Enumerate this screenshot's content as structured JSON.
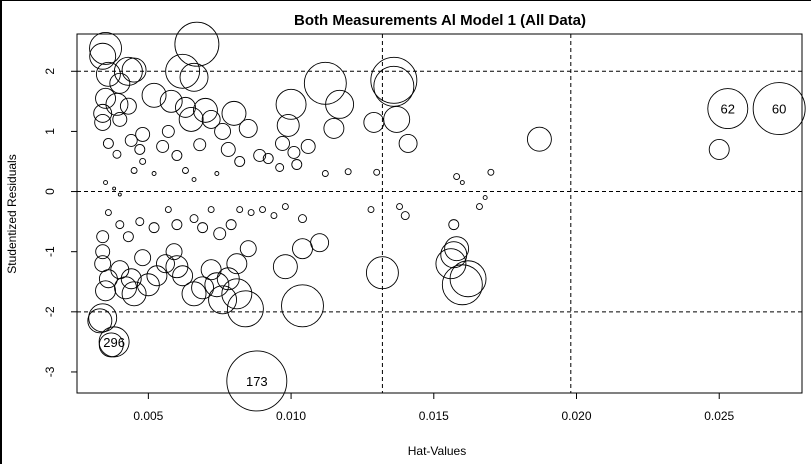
{
  "chart_data": {
    "type": "scatter",
    "title": "Both Measurements Al Model 1 (All Data)",
    "xlabel": "Hat-Values",
    "ylabel": "Studentized Residuals",
    "xlim": [
      0.0025,
      0.0279
    ],
    "ylim": [
      -3.35,
      2.62
    ],
    "x_ticks": [
      0.005,
      0.01,
      0.015,
      0.02,
      0.025
    ],
    "x_tick_labels": [
      "0.005",
      "0.010",
      "0.015",
      "0.020",
      "0.025"
    ],
    "y_ticks": [
      -3,
      -2,
      -1,
      0,
      1,
      2
    ],
    "y_tick_labels": [
      "-3",
      "-2",
      "-1",
      "0",
      "1",
      "2"
    ],
    "grid": false,
    "reference_lines": {
      "h": [
        -2,
        0,
        2
      ],
      "v": [
        0.0132,
        0.0198
      ]
    },
    "point_style": "open circles, area proportional to Cook's distance",
    "points": [
      {
        "x": 0.0035,
        "y": 2.38,
        "size": 16
      },
      {
        "x": 0.0034,
        "y": 2.25,
        "size": 13
      },
      {
        "x": 0.0036,
        "y": 1.95,
        "size": 12
      },
      {
        "x": 0.0035,
        "y": 1.55,
        "size": 10
      },
      {
        "x": 0.0034,
        "y": 1.3,
        "size": 9
      },
      {
        "x": 0.0034,
        "y": 1.15,
        "size": 8
      },
      {
        "x": 0.0039,
        "y": 1.45,
        "size": 11
      },
      {
        "x": 0.0043,
        "y": 2.0,
        "size": 14
      },
      {
        "x": 0.0045,
        "y": 2.02,
        "size": 12
      },
      {
        "x": 0.004,
        "y": 1.8,
        "size": 10
      },
      {
        "x": 0.004,
        "y": 1.2,
        "size": 7
      },
      {
        "x": 0.0043,
        "y": 1.42,
        "size": 8
      },
      {
        "x": 0.0052,
        "y": 1.6,
        "size": 12
      },
      {
        "x": 0.0058,
        "y": 1.5,
        "size": 11
      },
      {
        "x": 0.0062,
        "y": 2.0,
        "size": 17
      },
      {
        "x": 0.0066,
        "y": 1.9,
        "size": 14
      },
      {
        "x": 0.0067,
        "y": 2.45,
        "size": 22
      },
      {
        "x": 0.0065,
        "y": 1.2,
        "size": 12
      },
      {
        "x": 0.0063,
        "y": 1.4,
        "size": 10
      },
      {
        "x": 0.007,
        "y": 1.35,
        "size": 12
      },
      {
        "x": 0.0072,
        "y": 1.2,
        "size": 9
      },
      {
        "x": 0.008,
        "y": 1.3,
        "size": 12
      },
      {
        "x": 0.0076,
        "y": 1.0,
        "size": 8
      },
      {
        "x": 0.0085,
        "y": 1.05,
        "size": 9
      },
      {
        "x": 0.01,
        "y": 1.45,
        "size": 15
      },
      {
        "x": 0.0099,
        "y": 1.1,
        "size": 11
      },
      {
        "x": 0.0112,
        "y": 1.8,
        "size": 21
      },
      {
        "x": 0.0117,
        "y": 1.45,
        "size": 14
      },
      {
        "x": 0.0115,
        "y": 1.05,
        "size": 10
      },
      {
        "x": 0.0129,
        "y": 1.15,
        "size": 10
      },
      {
        "x": 0.0136,
        "y": 1.85,
        "size": 23
      },
      {
        "x": 0.0136,
        "y": 1.75,
        "size": 20
      },
      {
        "x": 0.0137,
        "y": 1.2,
        "size": 13
      },
      {
        "x": 0.0141,
        "y": 0.8,
        "size": 9
      },
      {
        "x": 0.0187,
        "y": 0.87,
        "size": 12
      },
      {
        "x": 0.025,
        "y": 0.7,
        "size": 10
      },
      {
        "x": 0.0253,
        "y": 1.38,
        "size": 20,
        "label": "62"
      },
      {
        "x": 0.0271,
        "y": 1.38,
        "size": 26,
        "label": "60"
      },
      {
        "x": 0.0036,
        "y": 0.8,
        "size": 5
      },
      {
        "x": 0.0039,
        "y": 0.62,
        "size": 4
      },
      {
        "x": 0.0044,
        "y": 0.85,
        "size": 6
      },
      {
        "x": 0.0048,
        "y": 0.95,
        "size": 7
      },
      {
        "x": 0.0047,
        "y": 0.7,
        "size": 5
      },
      {
        "x": 0.0055,
        "y": 0.75,
        "size": 6
      },
      {
        "x": 0.0057,
        "y": 1.0,
        "size": 6
      },
      {
        "x": 0.006,
        "y": 0.6,
        "size": 5
      },
      {
        "x": 0.0068,
        "y": 0.78,
        "size": 6
      },
      {
        "x": 0.0078,
        "y": 0.7,
        "size": 7
      },
      {
        "x": 0.0082,
        "y": 0.5,
        "size": 5
      },
      {
        "x": 0.0089,
        "y": 0.6,
        "size": 6
      },
      {
        "x": 0.0092,
        "y": 0.55,
        "size": 5
      },
      {
        "x": 0.0097,
        "y": 0.8,
        "size": 7
      },
      {
        "x": 0.0101,
        "y": 0.65,
        "size": 6
      },
      {
        "x": 0.0102,
        "y": 0.45,
        "size": 5
      },
      {
        "x": 0.0106,
        "y": 0.75,
        "size": 7
      },
      {
        "x": 0.0096,
        "y": 0.4,
        "size": 4
      },
      {
        "x": 0.0112,
        "y": 0.3,
        "size": 3
      },
      {
        "x": 0.012,
        "y": 0.33,
        "size": 3
      },
      {
        "x": 0.013,
        "y": 0.32,
        "size": 3
      },
      {
        "x": 0.0158,
        "y": 0.25,
        "size": 3
      },
      {
        "x": 0.017,
        "y": 0.32,
        "size": 3
      },
      {
        "x": 0.016,
        "y": 0.15,
        "size": 2
      },
      {
        "x": 0.0035,
        "y": 0.15,
        "size": 2
      },
      {
        "x": 0.0038,
        "y": 0.05,
        "size": 1.5
      },
      {
        "x": 0.004,
        "y": -0.05,
        "size": 1.5
      },
      {
        "x": 0.0045,
        "y": 0.35,
        "size": 3
      },
      {
        "x": 0.0048,
        "y": 0.5,
        "size": 3
      },
      {
        "x": 0.0052,
        "y": 0.3,
        "size": 2
      },
      {
        "x": 0.0063,
        "y": 0.35,
        "size": 3
      },
      {
        "x": 0.0066,
        "y": 0.2,
        "size": 2
      },
      {
        "x": 0.0074,
        "y": 0.3,
        "size": 2
      },
      {
        "x": 0.0036,
        "y": -0.35,
        "size": 3
      },
      {
        "x": 0.004,
        "y": -0.55,
        "size": 4
      },
      {
        "x": 0.0043,
        "y": -0.75,
        "size": 5
      },
      {
        "x": 0.0047,
        "y": -0.5,
        "size": 4
      },
      {
        "x": 0.0052,
        "y": -0.6,
        "size": 5
      },
      {
        "x": 0.0057,
        "y": -0.3,
        "size": 3
      },
      {
        "x": 0.006,
        "y": -0.55,
        "size": 5
      },
      {
        "x": 0.0066,
        "y": -0.45,
        "size": 4
      },
      {
        "x": 0.0069,
        "y": -0.6,
        "size": 5
      },
      {
        "x": 0.0072,
        "y": -0.3,
        "size": 3
      },
      {
        "x": 0.0075,
        "y": -0.7,
        "size": 6
      },
      {
        "x": 0.0079,
        "y": -0.55,
        "size": 5
      },
      {
        "x": 0.0082,
        "y": -0.3,
        "size": 3
      },
      {
        "x": 0.0086,
        "y": -0.35,
        "size": 3
      },
      {
        "x": 0.009,
        "y": -0.3,
        "size": 3
      },
      {
        "x": 0.0094,
        "y": -0.4,
        "size": 3
      },
      {
        "x": 0.0098,
        "y": -0.25,
        "size": 3
      },
      {
        "x": 0.0104,
        "y": -0.45,
        "size": 4
      },
      {
        "x": 0.0128,
        "y": -0.3,
        "size": 3
      },
      {
        "x": 0.0138,
        "y": -0.25,
        "size": 3
      },
      {
        "x": 0.014,
        "y": -0.4,
        "size": 4
      },
      {
        "x": 0.0157,
        "y": -0.55,
        "size": 5
      },
      {
        "x": 0.0166,
        "y": -0.25,
        "size": 3
      },
      {
        "x": 0.0168,
        "y": -0.1,
        "size": 2
      },
      {
        "x": 0.0034,
        "y": -0.75,
        "size": 6
      },
      {
        "x": 0.0034,
        "y": -1.0,
        "size": 7
      },
      {
        "x": 0.0034,
        "y": -1.2,
        "size": 8
      },
      {
        "x": 0.0036,
        "y": -1.45,
        "size": 9
      },
      {
        "x": 0.0035,
        "y": -1.65,
        "size": 10
      },
      {
        "x": 0.0034,
        "y": -2.1,
        "size": 14
      },
      {
        "x": 0.0033,
        "y": -2.15,
        "size": 12
      },
      {
        "x": 0.0038,
        "y": -2.5,
        "size": 15,
        "label": "296"
      },
      {
        "x": 0.0037,
        "y": -2.55,
        "size": 12
      },
      {
        "x": 0.004,
        "y": -1.3,
        "size": 9
      },
      {
        "x": 0.0042,
        "y": -1.6,
        "size": 11
      },
      {
        "x": 0.0044,
        "y": -1.45,
        "size": 10
      },
      {
        "x": 0.0045,
        "y": -1.7,
        "size": 12
      },
      {
        "x": 0.0048,
        "y": -1.1,
        "size": 8
      },
      {
        "x": 0.005,
        "y": -1.55,
        "size": 11
      },
      {
        "x": 0.0053,
        "y": -1.4,
        "size": 10
      },
      {
        "x": 0.0056,
        "y": -1.2,
        "size": 9
      },
      {
        "x": 0.006,
        "y": -1.25,
        "size": 11
      },
      {
        "x": 0.0059,
        "y": -1.0,
        "size": 8
      },
      {
        "x": 0.0062,
        "y": -1.4,
        "size": 10
      },
      {
        "x": 0.0066,
        "y": -1.7,
        "size": 12
      },
      {
        "x": 0.0069,
        "y": -1.6,
        "size": 11
      },
      {
        "x": 0.0072,
        "y": -1.3,
        "size": 10
      },
      {
        "x": 0.0074,
        "y": -1.55,
        "size": 12
      },
      {
        "x": 0.0076,
        "y": -1.8,
        "size": 14
      },
      {
        "x": 0.0078,
        "y": -1.45,
        "size": 11
      },
      {
        "x": 0.0081,
        "y": -1.7,
        "size": 15
      },
      {
        "x": 0.0084,
        "y": -1.95,
        "size": 18
      },
      {
        "x": 0.0081,
        "y": -1.2,
        "size": 10
      },
      {
        "x": 0.0085,
        "y": -0.95,
        "size": 8
      },
      {
        "x": 0.0098,
        "y": -1.25,
        "size": 12
      },
      {
        "x": 0.0104,
        "y": -1.9,
        "size": 21
      },
      {
        "x": 0.0104,
        "y": -0.95,
        "size": 10
      },
      {
        "x": 0.011,
        "y": -0.85,
        "size": 9
      },
      {
        "x": 0.0132,
        "y": -1.35,
        "size": 16
      },
      {
        "x": 0.0156,
        "y": -1.2,
        "size": 15
      },
      {
        "x": 0.0157,
        "y": -1.05,
        "size": 13
      },
      {
        "x": 0.0158,
        "y": -0.95,
        "size": 12
      },
      {
        "x": 0.016,
        "y": -1.55,
        "size": 20
      },
      {
        "x": 0.0162,
        "y": -1.45,
        "size": 18
      },
      {
        "x": 0.0088,
        "y": -3.15,
        "size": 30,
        "label": "173"
      }
    ]
  }
}
